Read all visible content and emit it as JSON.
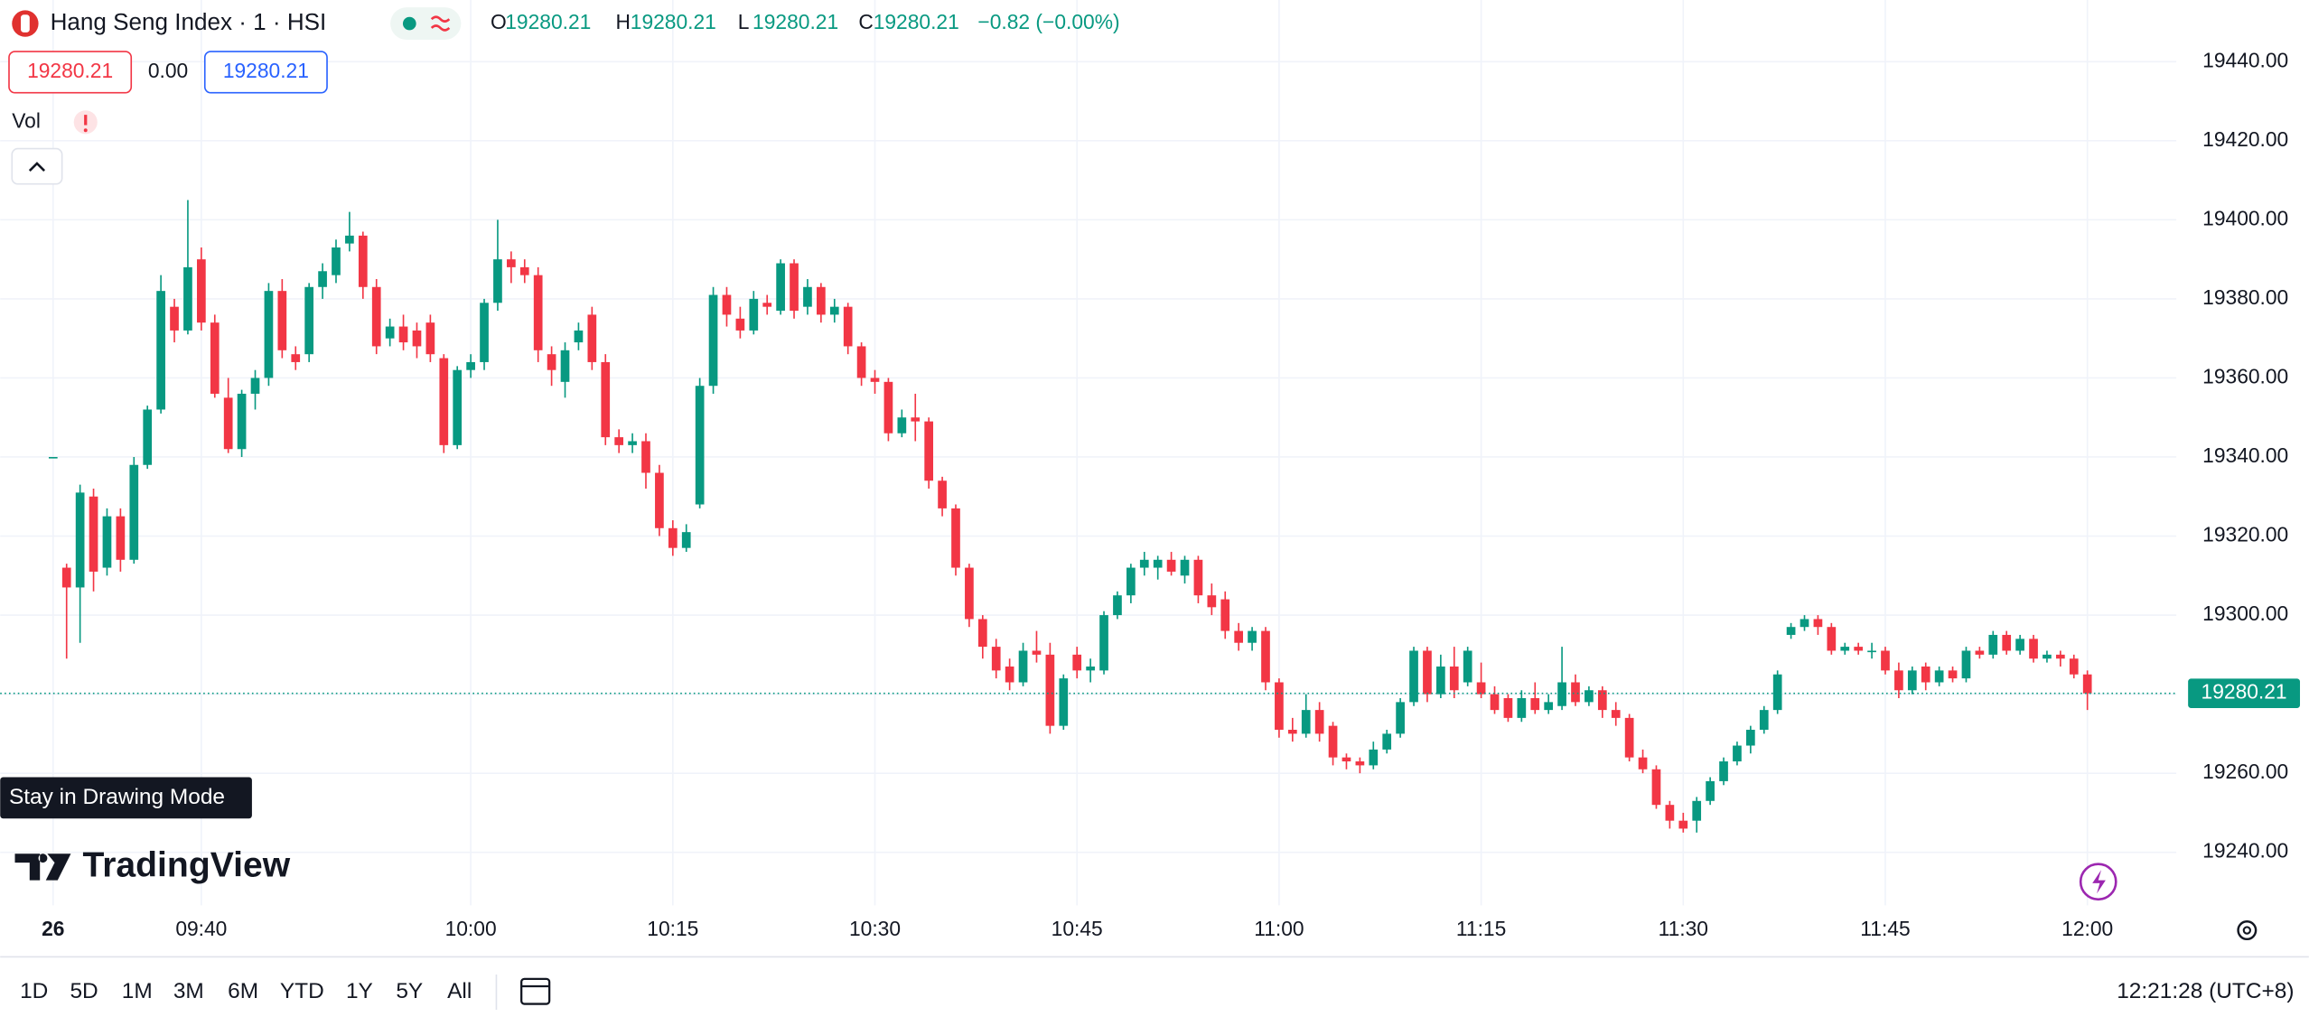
{
  "header": {
    "symbol": "Hang Seng Index · 1 · HSI",
    "ohlc_labels": [
      "O",
      "H",
      "L",
      "C"
    ],
    "ohlc_values": [
      19280.21,
      19280.21,
      19280.21,
      19280.21
    ],
    "change": "−0.82 (−0.00%)",
    "sell_price": "19280.21",
    "spread": "0.00",
    "buy_price": "19280.21"
  },
  "indicator": "Vol",
  "tooltip": "Stay in Drawing Mode",
  "brand": "TradingView",
  "toolbar": {
    "ranges": [
      "1D",
      "5D",
      "1M",
      "3M",
      "6M",
      "YTD",
      "1Y",
      "5Y",
      "All"
    ],
    "clock": "12:21:28 (UTC+8)"
  },
  "chart_data": {
    "type": "candlestick",
    "up_color": "#089981",
    "down_color": "#f23645",
    "grid": true,
    "last_price": 19280.21,
    "xlim": [
      -3.93,
      157.6
    ],
    "ylim": [
      19226.6,
      19455.6
    ],
    "xticks": [
      {
        "value": 0,
        "label": "26"
      },
      {
        "value": 11,
        "label": "09:40"
      },
      {
        "value": 31,
        "label": "10:00"
      },
      {
        "value": 46,
        "label": "10:15"
      },
      {
        "value": 61,
        "label": "10:30"
      },
      {
        "value": 76,
        "label": "10:45"
      },
      {
        "value": 91,
        "label": "11:00"
      },
      {
        "value": 106,
        "label": "11:15"
      },
      {
        "value": 121,
        "label": "11:30"
      },
      {
        "value": 136,
        "label": "11:45"
      },
      {
        "value": 151,
        "label": "12:00"
      }
    ],
    "yticks": [
      {
        "value": 19240,
        "label": "19240.00"
      },
      {
        "value": 19260,
        "label": "19260.00"
      },
      {
        "value": 19280,
        "label": "19280.00"
      },
      {
        "value": 19300,
        "label": "19300.00"
      },
      {
        "value": 19320,
        "label": "19320.00"
      },
      {
        "value": 19340,
        "label": "19340.00"
      },
      {
        "value": 19360,
        "label": "19360.00"
      },
      {
        "value": 19380,
        "label": "19380.00"
      },
      {
        "value": 19400,
        "label": "19400.00"
      },
      {
        "value": 19420,
        "label": "19420.00"
      },
      {
        "value": 19440,
        "label": "19440.00"
      }
    ],
    "ohlc": [
      [
        19340,
        19340,
        19340,
        19340
      ],
      [
        19312,
        19313,
        19289,
        19307
      ],
      [
        19307,
        19333,
        19293,
        19331
      ],
      [
        19330,
        19332,
        19306,
        19311
      ],
      [
        19312,
        19327,
        19310,
        19325
      ],
      [
        19325,
        19327,
        19311,
        19314
      ],
      [
        19314,
        19340,
        19313,
        19338
      ],
      [
        19338,
        19353,
        19337,
        19352
      ],
      [
        19352,
        19386,
        19351,
        19382
      ],
      [
        19378,
        19380,
        19369,
        19372
      ],
      [
        19372,
        19405,
        19371,
        19388
      ],
      [
        19390,
        19393,
        19372,
        19374
      ],
      [
        19374,
        19376,
        19355,
        19356
      ],
      [
        19355,
        19360,
        19341,
        19342
      ],
      [
        19342,
        19357,
        19340,
        19356
      ],
      [
        19356,
        19362,
        19352,
        19360
      ],
      [
        19360,
        19384,
        19358,
        19382
      ],
      [
        19382,
        19385,
        19365,
        19367
      ],
      [
        19366,
        19368,
        19362,
        19364
      ],
      [
        19366,
        19384,
        19364,
        19383
      ],
      [
        19383,
        19389,
        19380,
        19387
      ],
      [
        19386,
        19395,
        19384,
        19393
      ],
      [
        19394,
        19402,
        19392,
        19396
      ],
      [
        19396,
        19397,
        19380,
        19383
      ],
      [
        19383,
        19385,
        19366,
        19368
      ],
      [
        19370,
        19375,
        19368,
        19373
      ],
      [
        19373,
        19376,
        19367,
        19369
      ],
      [
        19372,
        19374,
        19365,
        19368
      ],
      [
        19374,
        19376,
        19364,
        19366
      ],
      [
        19365,
        19366,
        19341,
        19343
      ],
      [
        19343,
        19363,
        19342,
        19362
      ],
      [
        19362,
        19366,
        19360,
        19364
      ],
      [
        19364,
        19380,
        19362,
        19379
      ],
      [
        19379,
        19400,
        19377,
        19390
      ],
      [
        19390,
        19392,
        19384,
        19388
      ],
      [
        19388,
        19390,
        19384,
        19386
      ],
      [
        19386,
        19388,
        19364,
        19367
      ],
      [
        19366,
        19368,
        19358,
        19362
      ],
      [
        19359,
        19369,
        19355,
        19367
      ],
      [
        19369,
        19374,
        19367,
        19372
      ],
      [
        19376,
        19378,
        19362,
        19364
      ],
      [
        19364,
        19366,
        19343,
        19345
      ],
      [
        19345,
        19347,
        19341,
        19343
      ],
      [
        19343,
        19346,
        19341,
        19344
      ],
      [
        19344,
        19346,
        19332,
        19336
      ],
      [
        19336,
        19338,
        19320,
        19322
      ],
      [
        19322,
        19324,
        19315,
        19317
      ],
      [
        19317,
        19323,
        19316,
        19321
      ],
      [
        19328,
        19360,
        19327,
        19358
      ],
      [
        19358,
        19383,
        19356,
        19381
      ],
      [
        19381,
        19383,
        19373,
        19376
      ],
      [
        19375,
        19378,
        19370,
        19372
      ],
      [
        19372,
        19382,
        19371,
        19380
      ],
      [
        19379,
        19381,
        19376,
        19378
      ],
      [
        19377,
        19390,
        19376,
        19389
      ],
      [
        19389,
        19390,
        19375,
        19377
      ],
      [
        19378,
        19385,
        19376,
        19383
      ],
      [
        19383,
        19384,
        19374,
        19376
      ],
      [
        19376,
        19380,
        19374,
        19378
      ],
      [
        19378,
        19379,
        19366,
        19368
      ],
      [
        19368,
        19369,
        19358,
        19360
      ],
      [
        19360,
        19362,
        19356,
        19359
      ],
      [
        19359,
        19360,
        19344,
        19346
      ],
      [
        19346,
        19352,
        19345,
        19350
      ],
      [
        19350,
        19356,
        19344,
        19349
      ],
      [
        19349,
        19350,
        19332,
        19334
      ],
      [
        19334,
        19335,
        19325,
        19327
      ],
      [
        19327,
        19328,
        19310,
        19312
      ],
      [
        19312,
        19313,
        19297,
        19299
      ],
      [
        19299,
        19300,
        19289,
        19292
      ],
      [
        19292,
        19294,
        19284,
        19286
      ],
      [
        19287,
        19289,
        19281,
        19283
      ],
      [
        19283,
        19293,
        19282,
        19291
      ],
      [
        19291,
        19296,
        19288,
        19290
      ],
      [
        19290,
        19293,
        19270,
        19272
      ],
      [
        19272,
        19285,
        19271,
        19284
      ],
      [
        19290,
        19292,
        19284,
        19286
      ],
      [
        19286,
        19289,
        19283,
        19287
      ],
      [
        19286,
        19301,
        19285,
        19300
      ],
      [
        19300,
        19306,
        19299,
        19305
      ],
      [
        19305,
        19313,
        19303,
        19312
      ],
      [
        19312,
        19316,
        19310,
        19314
      ],
      [
        19312,
        19315,
        19309,
        19314
      ],
      [
        19314,
        19316,
        19310,
        19311
      ],
      [
        19310,
        19315,
        19308,
        19314
      ],
      [
        19314,
        19315,
        19303,
        19305
      ],
      [
        19305,
        19308,
        19300,
        19302
      ],
      [
        19304,
        19306,
        19294,
        19296
      ],
      [
        19296,
        19298,
        19291,
        19293
      ],
      [
        19293,
        19297,
        19291,
        19296
      ],
      [
        19296,
        19297,
        19281,
        19283
      ],
      [
        19283,
        19284,
        19269,
        19271
      ],
      [
        19271,
        19274,
        19268,
        19270
      ],
      [
        19270,
        19280,
        19269,
        19276
      ],
      [
        19276,
        19278,
        19268,
        19270
      ],
      [
        19272,
        19273,
        19262,
        19264
      ],
      [
        19264,
        19265,
        19261,
        19263
      ],
      [
        19263,
        19264,
        19260,
        19262
      ],
      [
        19262,
        19268,
        19261,
        19266
      ],
      [
        19266,
        19271,
        19265,
        19270
      ],
      [
        19270,
        19279,
        19269,
        19278
      ],
      [
        19278,
        19292,
        19277,
        19291
      ],
      [
        19291,
        19292,
        19278,
        19280
      ],
      [
        19280,
        19290,
        19279,
        19287
      ],
      [
        19287,
        19292,
        19279,
        19281
      ],
      [
        19283,
        19292,
        19282,
        19291
      ],
      [
        19283,
        19288,
        19279,
        19280
      ],
      [
        19280,
        19282,
        19275,
        19276
      ],
      [
        19279,
        19280,
        19273,
        19274
      ],
      [
        19274,
        19281,
        19273,
        19279
      ],
      [
        19279,
        19283,
        19275,
        19276
      ],
      [
        19276,
        19280,
        19275,
        19278
      ],
      [
        19277,
        19292,
        19276,
        19283
      ],
      [
        19283,
        19285,
        19277,
        19278
      ],
      [
        19278,
        19282,
        19277,
        19281
      ],
      [
        19281,
        19282,
        19274,
        19276
      ],
      [
        19276,
        19278,
        19272,
        19274
      ],
      [
        19274,
        19275,
        19263,
        19264
      ],
      [
        19264,
        19266,
        19260,
        19261
      ],
      [
        19261,
        19262,
        19251,
        19252
      ],
      [
        19252,
        19253,
        19246,
        19248
      ],
      [
        19248,
        19250,
        19245,
        19246
      ],
      [
        19248,
        19254,
        19245,
        19253
      ],
      [
        19253,
        19259,
        19252,
        19258
      ],
      [
        19258,
        19264,
        19257,
        19263
      ],
      [
        19263,
        19268,
        19262,
        19267
      ],
      [
        19267,
        19272,
        19265,
        19271
      ],
      [
        19271,
        19277,
        19270,
        19276
      ],
      [
        19276,
        19286,
        19275,
        19285
      ],
      [
        19295,
        19298,
        19294,
        19297
      ],
      [
        19297,
        19300,
        19296,
        19299
      ],
      [
        19299,
        19300,
        19295,
        19297
      ],
      [
        19297,
        19298,
        19290,
        19291
      ],
      [
        19291,
        19293,
        19290,
        19292
      ],
      [
        19292,
        19293,
        19290,
        19291
      ],
      [
        19291,
        19293,
        19289,
        19291
      ],
      [
        19291,
        19292,
        19285,
        19286
      ],
      [
        19286,
        19288,
        19279,
        19281
      ],
      [
        19281,
        19287,
        19280,
        19286
      ],
      [
        19287,
        19288,
        19281,
        19283
      ],
      [
        19283,
        19287,
        19282,
        19286
      ],
      [
        19286,
        19287,
        19283,
        19284
      ],
      [
        19284,
        19292,
        19283,
        19291
      ],
      [
        19291,
        19292,
        19289,
        19290
      ],
      [
        19290,
        19296,
        19289,
        19295
      ],
      [
        19295,
        19296,
        19290,
        19291
      ],
      [
        19291,
        19295,
        19290,
        19294
      ],
      [
        19294,
        19295,
        19288,
        19289
      ],
      [
        19289,
        19291,
        19288,
        19290
      ],
      [
        19290,
        19291,
        19287,
        19289
      ],
      [
        19289,
        19290,
        19284,
        19285
      ],
      [
        19285,
        19286,
        19276,
        19280.21
      ]
    ]
  }
}
